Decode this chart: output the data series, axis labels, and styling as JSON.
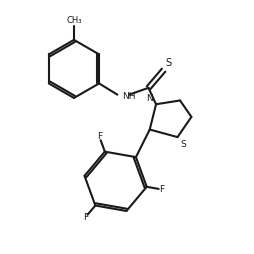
{
  "background_color": "#ffffff",
  "line_color": "#1a1a1a",
  "line_width": 1.5,
  "figure_size": [
    2.54,
    2.54
  ],
  "dpi": 100,
  "xlim": [
    0,
    10
  ],
  "ylim": [
    0,
    10
  ]
}
